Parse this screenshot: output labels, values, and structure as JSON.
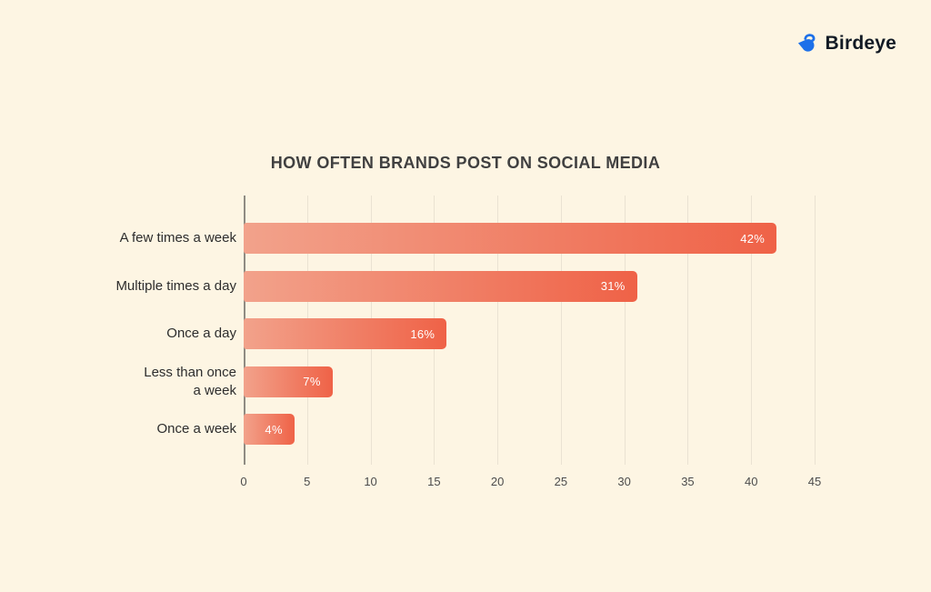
{
  "page": {
    "background": "#FDF5E3"
  },
  "logo": {
    "brand": "Birdeye",
    "icon": "bird-icon",
    "icon_color": "#1D70E9",
    "text_color": "#121A24"
  },
  "chart_data": {
    "type": "bar",
    "orientation": "horizontal",
    "title": "HOW OFTEN BRANDS POST ON SOCIAL MEDIA",
    "categories": [
      "A few times a week",
      "Multiple times a day",
      "Once a day",
      "Less than once a week",
      "Once a week"
    ],
    "values": [
      42,
      31,
      16,
      7,
      4
    ],
    "value_labels": [
      "42%",
      "31%",
      "16%",
      "7%",
      "4%"
    ],
    "xlabel": "",
    "ylabel": "",
    "xlim": [
      0,
      45
    ],
    "xticks": [
      0,
      5,
      10,
      15,
      20,
      25,
      30,
      35,
      40,
      45
    ],
    "grid": "vertical",
    "legend": "none",
    "colors": {
      "bar_gradient_start": "#F2A28B",
      "bar_gradient_end": "#EF6247",
      "gridline": "#EAE2D2",
      "axis_line": "#8F8C83",
      "tick_label": "#4C4C4C",
      "category_label": "#2D2D2D",
      "title": "#404040",
      "value_label": "#FFFFFF"
    }
  }
}
